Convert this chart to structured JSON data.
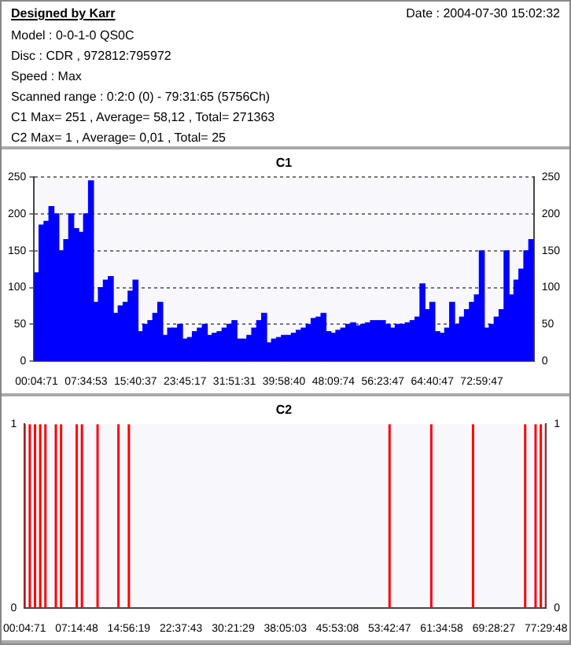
{
  "chart_data": [
    {
      "type": "other",
      "title": "Designed by Karr",
      "annotations": [
        "Date : 2004-07-30 15:02:32",
        "Model : 0-0-1-0 QS0C",
        "Disc : CDR , 972812:795972",
        "Speed : Max",
        "Scanned range : 0:2:0 (0) - 79:31:65 (5756Ch)",
        "C1 Max= 251 , Average= 58,12 , Total= 271363",
        "C2 Max= 1 , Average= 0,01 , Total= 25"
      ]
    },
    {
      "type": "bar",
      "title": "C1",
      "categories": [
        "00:04:71",
        null,
        null,
        null,
        null,
        null,
        null,
        null,
        null,
        null,
        "07:34:53",
        null,
        null,
        null,
        null,
        null,
        null,
        null,
        null,
        null,
        "15:40:37",
        null,
        null,
        null,
        null,
        null,
        null,
        null,
        null,
        null,
        "23:45:17",
        null,
        null,
        null,
        null,
        null,
        null,
        null,
        null,
        null,
        "31:51:31",
        null,
        null,
        null,
        null,
        null,
        null,
        null,
        null,
        null,
        "39:58:40",
        null,
        null,
        null,
        null,
        null,
        null,
        null,
        null,
        null,
        "48:09:74",
        null,
        null,
        null,
        null,
        null,
        null,
        null,
        null,
        null,
        "56:23:47",
        null,
        null,
        null,
        null,
        null,
        null,
        null,
        null,
        null,
        "64:40:47",
        null,
        null,
        null,
        null,
        null,
        null,
        null,
        null,
        null,
        "72:59:47",
        null,
        null,
        null,
        null,
        null,
        null,
        null,
        null,
        null,
        null
      ],
      "values": [
        120,
        185,
        190,
        210,
        200,
        150,
        165,
        200,
        180,
        175,
        200,
        245,
        80,
        100,
        110,
        115,
        65,
        75,
        80,
        95,
        110,
        40,
        50,
        55,
        65,
        80,
        35,
        45,
        45,
        50,
        30,
        32,
        40,
        45,
        50,
        35,
        38,
        40,
        45,
        50,
        55,
        30,
        30,
        35,
        45,
        55,
        65,
        25,
        30,
        32,
        35,
        35,
        38,
        42,
        45,
        50,
        58,
        60,
        65,
        40,
        38,
        42,
        45,
        50,
        52,
        48,
        50,
        52,
        55,
        55,
        55,
        50,
        45,
        50,
        50,
        52,
        55,
        60,
        105,
        70,
        80,
        40,
        38,
        45,
        80,
        50,
        60,
        70,
        80,
        90,
        150,
        45,
        50,
        60,
        70,
        150,
        90,
        110,
        125,
        150,
        165
      ],
      "color": "#0000ff",
      "ylim": [
        0,
        250
      ],
      "yticks": [
        0,
        50,
        100,
        150,
        200,
        250
      ],
      "y2lim": [
        0,
        250
      ],
      "y2ticks": [
        0,
        50,
        100,
        150,
        200,
        250
      ],
      "grid": "y"
    },
    {
      "type": "bar",
      "title": "C2",
      "categories": [
        "00:04:71",
        null,
        null,
        null,
        null,
        null,
        null,
        null,
        null,
        null,
        "07:14:48",
        null,
        null,
        null,
        null,
        null,
        null,
        null,
        null,
        null,
        "14:56:19",
        null,
        null,
        null,
        null,
        null,
        null,
        null,
        null,
        null,
        "22:37:43",
        null,
        null,
        null,
        null,
        null,
        null,
        null,
        null,
        null,
        "30:21:29",
        null,
        null,
        null,
        null,
        null,
        null,
        null,
        null,
        null,
        "38:05:03",
        null,
        null,
        null,
        null,
        null,
        null,
        null,
        null,
        null,
        "45:53:08",
        null,
        null,
        null,
        null,
        null,
        null,
        null,
        null,
        null,
        "53:42:47",
        null,
        null,
        null,
        null,
        null,
        null,
        null,
        null,
        null,
        "61:34:58",
        null,
        null,
        null,
        null,
        null,
        null,
        null,
        null,
        null,
        "69:28:27",
        null,
        null,
        null,
        null,
        null,
        null,
        null,
        null,
        null,
        "77:29:48"
      ],
      "values": [
        1,
        1,
        1,
        1,
        1,
        0,
        1,
        1,
        0,
        0,
        1,
        1,
        0,
        0,
        1,
        0,
        0,
        0,
        1,
        0,
        1,
        0,
        0,
        0,
        0,
        0,
        0,
        0,
        0,
        0,
        0,
        0,
        0,
        0,
        0,
        0,
        0,
        0,
        0,
        0,
        0,
        0,
        0,
        0,
        0,
        0,
        0,
        0,
        0,
        0,
        0,
        0,
        0,
        0,
        0,
        0,
        0,
        0,
        0,
        0,
        0,
        0,
        0,
        0,
        0,
        0,
        0,
        0,
        0,
        0,
        1,
        0,
        0,
        0,
        0,
        0,
        0,
        0,
        1,
        0,
        0,
        0,
        0,
        0,
        0,
        0,
        1,
        0,
        0,
        0,
        0,
        0,
        0,
        0,
        0,
        0,
        1,
        0,
        1,
        1,
        1
      ],
      "color": "#ff0000",
      "ylim": [
        0,
        1
      ],
      "yticks": [
        0,
        1
      ],
      "y2lim": [
        0,
        1
      ],
      "y2ticks": [
        0,
        1
      ]
    }
  ]
}
